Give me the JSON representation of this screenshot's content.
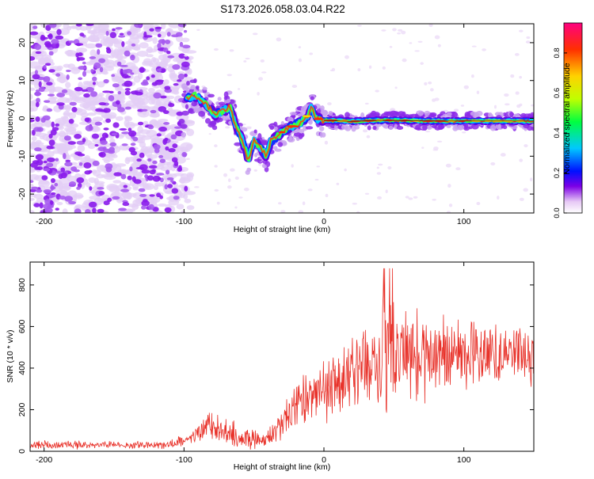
{
  "title": "S173.2026.058.03.04.R22",
  "chart_data": [
    {
      "type": "heatmap",
      "id": "spectrogram",
      "xlabel": "Height of straight line (km)",
      "ylabel": "Frequency (Hz)",
      "xlim": [
        -210,
        150
      ],
      "ylim": [
        -25,
        25
      ],
      "xticks": [
        -200,
        -100,
        0,
        100
      ],
      "yticks": [
        -20,
        -10,
        0,
        10,
        20
      ],
      "ridge_path": [
        [
          -100,
          5
        ],
        [
          -92,
          6
        ],
        [
          -85,
          4
        ],
        [
          -78,
          1
        ],
        [
          -72,
          2
        ],
        [
          -67,
          3
        ],
        [
          -63,
          -2
        ],
        [
          -58,
          -6
        ],
        [
          -54,
          -11
        ],
        [
          -50,
          -6
        ],
        [
          -45,
          -8
        ],
        [
          -41,
          -10
        ],
        [
          -38,
          -6
        ],
        [
          -34,
          -5
        ],
        [
          -28,
          -3
        ],
        [
          -22,
          -2
        ],
        [
          -16,
          -1
        ],
        [
          -11,
          1
        ],
        [
          -9,
          3
        ],
        [
          -6,
          0
        ],
        [
          0,
          -0.5
        ],
        [
          20,
          -0.8
        ],
        [
          40,
          -0.5
        ],
        [
          60,
          -0.6
        ],
        [
          80,
          -0.7
        ],
        [
          100,
          -0.7
        ],
        [
          120,
          -0.7
        ],
        [
          150,
          -0.7
        ]
      ],
      "colorbar": {
        "label": "Normalized spectral amplitude",
        "range": [
          0,
          0.95
        ],
        "ticks": [
          "0.0",
          "0.2",
          "0.4",
          "0.6",
          "0.8"
        ],
        "colors": [
          "#ffffff",
          "#e6c8f5",
          "#7d00e6",
          "#0010ff",
          "#00c8ff",
          "#00ff40",
          "#c0ff00",
          "#ffd200",
          "#ff3000",
          "#ff0080"
        ]
      }
    },
    {
      "type": "line",
      "id": "snr",
      "xlabel": "Height of straight line (km)",
      "ylabel": "SNR (10 * v/v)",
      "xlim": [
        -210,
        150
      ],
      "ylim": [
        0,
        910
      ],
      "xticks": [
        -200,
        -100,
        0,
        100
      ],
      "yticks": [
        0,
        200,
        400,
        600,
        800
      ],
      "color": "#e8322a",
      "envelope": [
        [
          -210,
          30,
          25
        ],
        [
          -150,
          30,
          20
        ],
        [
          -110,
          32,
          25
        ],
        [
          -95,
          60,
          40
        ],
        [
          -85,
          120,
          90
        ],
        [
          -75,
          100,
          90
        ],
        [
          -60,
          70,
          70
        ],
        [
          -50,
          60,
          60
        ],
        [
          -40,
          60,
          60
        ],
        [
          -32,
          110,
          80
        ],
        [
          -25,
          200,
          120
        ],
        [
          -15,
          240,
          150
        ],
        [
          -5,
          270,
          170
        ],
        [
          5,
          300,
          180
        ],
        [
          15,
          340,
          200
        ],
        [
          25,
          380,
          220
        ],
        [
          35,
          420,
          260
        ],
        [
          45,
          470,
          330
        ],
        [
          55,
          480,
          320
        ],
        [
          65,
          470,
          280
        ],
        [
          80,
          470,
          200
        ],
        [
          100,
          470,
          190
        ],
        [
          120,
          470,
          180
        ],
        [
          150,
          470,
          170
        ]
      ]
    }
  ]
}
